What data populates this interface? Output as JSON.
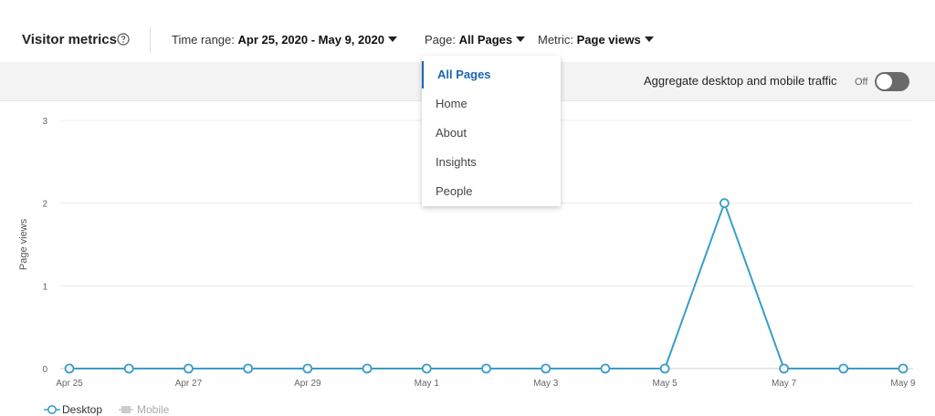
{
  "header": {
    "title": "Visitor metrics",
    "time_range_label": "Time range:",
    "time_range_value": "Apr 25, 2020 - May 9, 2020",
    "page_label": "Page:",
    "page_value": "All Pages",
    "metric_label": "Metric:",
    "metric_value": "Page views"
  },
  "toolbar": {
    "aggregate_label": "Aggregate desktop and mobile traffic",
    "toggle_state": "Off"
  },
  "page_dropdown": {
    "items": [
      "All Pages",
      "Home",
      "About",
      "Insights",
      "People"
    ],
    "selected": "All Pages"
  },
  "legend": {
    "desktop": "Desktop",
    "mobile": "Mobile"
  },
  "colors": {
    "accent": "#1b67b2",
    "series_desktop": "#3a9dc8",
    "series_mobile": "#cccccc"
  },
  "chart_data": {
    "type": "line",
    "ylabel": "Page views",
    "xlabel": "",
    "ylim": [
      0,
      3
    ],
    "yticks": [
      0,
      1,
      2,
      3
    ],
    "x": [
      "Apr 25",
      "Apr 26",
      "Apr 27",
      "Apr 28",
      "Apr 29",
      "Apr 30",
      "May 1",
      "May 2",
      "May 3",
      "May 4",
      "May 5",
      "May 6",
      "May 7",
      "May 8",
      "May 9"
    ],
    "xtick_labels": [
      "Apr 25",
      "Apr 27",
      "Apr 29",
      "May 1",
      "May 3",
      "May 5",
      "May 7",
      "May 9"
    ],
    "series": [
      {
        "name": "Desktop",
        "values": [
          0,
          0,
          0,
          0,
          0,
          0,
          0,
          0,
          0,
          0,
          0,
          2,
          0,
          0,
          0
        ]
      }
    ],
    "grid": true,
    "legend": "bottom-left"
  }
}
